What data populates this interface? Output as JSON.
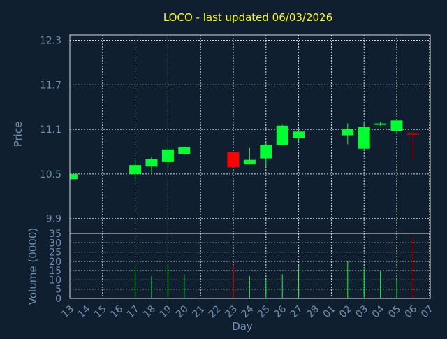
{
  "chart_data": {
    "type": "candlestick",
    "title": "LOCO - last updated 06/03/2026",
    "xlabel": "Day",
    "price_panel": {
      "ylabel": "Price",
      "yticks": [
        "12.3",
        "11.7",
        "11.1",
        "10.5",
        "9.9"
      ],
      "ylim": [
        9.7,
        12.37
      ],
      "grid": true
    },
    "volume_panel": {
      "ylabel": "Volume (0000)",
      "yticks": [
        "35",
        "30",
        "25",
        "20",
        "15",
        "10",
        "5",
        "0"
      ],
      "ylim": [
        0,
        35
      ],
      "grid": true
    },
    "x_labels": [
      "13",
      "14",
      "15",
      "16",
      "17",
      "18",
      "19",
      "20",
      "21",
      "22",
      "23",
      "24",
      "25",
      "26",
      "27",
      "28",
      "01",
      "02",
      "03",
      "04",
      "05",
      "06",
      "07"
    ],
    "candles": [
      {
        "x": 0.1,
        "open": 10.43,
        "close": 10.5,
        "high": 10.5,
        "low": 10.43,
        "volume": 0
      },
      {
        "x": 4.0,
        "open": 10.5,
        "close": 10.62,
        "high": 10.7,
        "low": 10.4,
        "volume": 16
      },
      {
        "x": 5.0,
        "open": 10.6,
        "close": 10.7,
        "high": 10.73,
        "low": 10.52,
        "volume": 12
      },
      {
        "x": 6.0,
        "open": 10.66,
        "close": 10.83,
        "high": 10.85,
        "low": 10.6,
        "volume": 18
      },
      {
        "x": 7.0,
        "open": 10.77,
        "close": 10.86,
        "high": 10.87,
        "low": 10.75,
        "volume": 13
      },
      {
        "x": 10.0,
        "open": 10.79,
        "close": 10.59,
        "high": 10.79,
        "low": 10.59,
        "volume": 18
      },
      {
        "x": 11.0,
        "open": 10.63,
        "close": 10.69,
        "high": 10.85,
        "low": 10.63,
        "volume": 12
      },
      {
        "x": 12.0,
        "open": 10.71,
        "close": 10.89,
        "high": 10.92,
        "low": 10.6,
        "volume": 10
      },
      {
        "x": 13.0,
        "open": 10.89,
        "close": 11.15,
        "high": 11.16,
        "low": 10.89,
        "volume": 13
      },
      {
        "x": 14.0,
        "open": 10.98,
        "close": 11.07,
        "high": 11.12,
        "low": 10.92,
        "volume": 18
      },
      {
        "x": 17.0,
        "open": 11.02,
        "close": 11.1,
        "high": 11.18,
        "low": 10.9,
        "volume": 20
      },
      {
        "x": 18.0,
        "open": 10.84,
        "close": 11.13,
        "high": 11.21,
        "low": 10.81,
        "volume": 16
      },
      {
        "x": 19.0,
        "open": 11.16,
        "close": 11.17,
        "high": 11.2,
        "low": 11.15,
        "volume": 15
      },
      {
        "x": 20.0,
        "open": 11.08,
        "close": 11.22,
        "high": 11.23,
        "low": 11.05,
        "volume": 10
      },
      {
        "x": 21.0,
        "open": 11.04,
        "close": 11.03,
        "high": 11.04,
        "low": 10.7,
        "volume": 33
      }
    ],
    "colors": {
      "up": "#00ff33",
      "down": "#ff0000",
      "background": "#0f1f30",
      "grid": "#d8d8d8",
      "text": "#6f8fb0",
      "title": "#ffff00"
    }
  }
}
